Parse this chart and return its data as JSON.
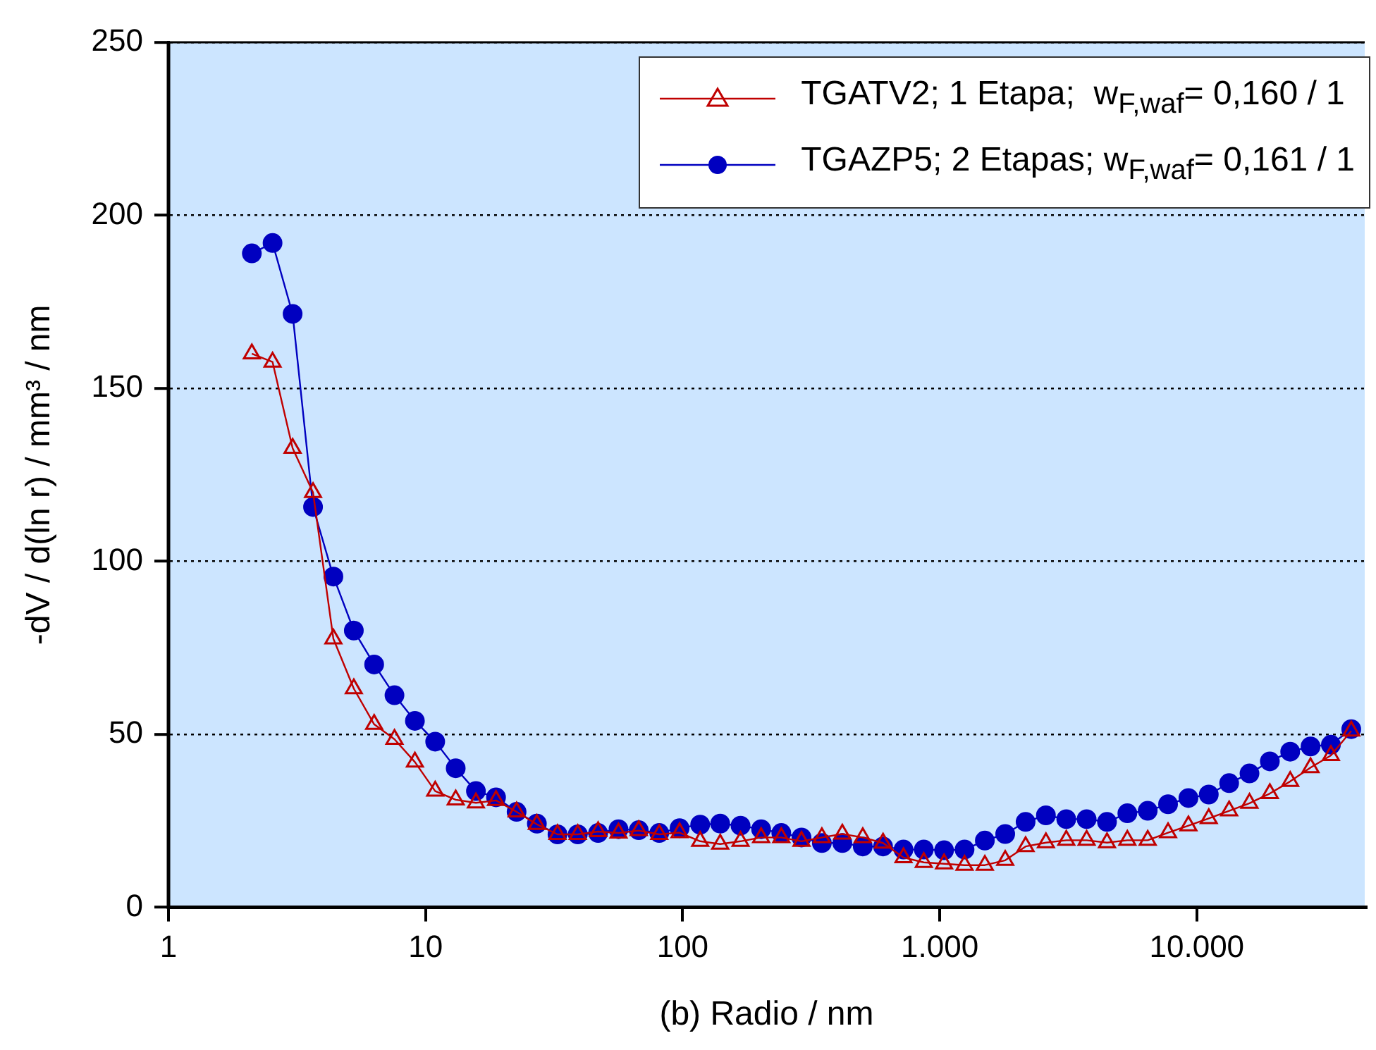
{
  "chart_data": {
    "type": "line",
    "xlabel": "(b) Radio / nm",
    "ylabel": "-dV / d(ln r) / mm³ / nm",
    "log": "x",
    "grid": "y",
    "legend": "top right",
    "line_style": "solid",
    "xlim": [
      1,
      45000
    ],
    "xticks": [
      1,
      10,
      100,
      {
        "value": 1000,
        "label": "1.000"
      },
      {
        "value": 10000,
        "label": "10.000"
      }
    ],
    "ylim": [
      0,
      250
    ],
    "yticks": [
      0,
      50,
      100,
      150,
      200,
      250
    ],
    "x": [
      2.11,
      2.54,
      3.04,
      3.65,
      4.38,
      5.26,
      6.31,
      7.57,
      9.09,
      10.9,
      13.1,
      15.7,
      18.8,
      22.6,
      27.1,
      32.6,
      39.1,
      46.9,
      56.3,
      67.5,
      81.1,
      97.3,
      117,
      140,
      168,
      202,
      242,
      290,
      348,
      418,
      502,
      602,
      723,
      867,
      1040,
      1249,
      1498,
      1798,
      2158,
      2589,
      3107,
      3728,
      4474,
      5369,
      6443,
      7731,
      9278,
      11133,
      13360,
      16032,
      19238,
      23085,
      27701,
      33242,
      39891
    ],
    "series": [
      {
        "name": "TGATV2; 1 Etapa;  w$_{F,waf}$= 0,160 / 1",
        "color": "#c00000",
        "marker": "triangle",
        "values": [
          160,
          157.6,
          132.7,
          119.9,
          77.6,
          63.2,
          52.9,
          48.6,
          42,
          33.6,
          31.1,
          30.2,
          30.9,
          27.6,
          24,
          21.1,
          21.1,
          21.9,
          21.5,
          22.2,
          21.1,
          21.6,
          19.1,
          18.3,
          19.1,
          20.2,
          20.2,
          19.1,
          20.2,
          21.2,
          20.2,
          18.6,
          14.4,
          13,
          12.6,
          12.2,
          12.2,
          13.6,
          17.6,
          18.7,
          19.4,
          19.4,
          18.7,
          19.4,
          19.4,
          21.6,
          23.6,
          25.7,
          27.9,
          30.1,
          32.9,
          36.4,
          40.4,
          43.9,
          51
        ]
      },
      {
        "name": "TGAZP5; 2 Etapas; w$_{F,waf}$= 0,161 / 1",
        "color": "#0000c0",
        "marker": "circle",
        "values": [
          189,
          192,
          171.5,
          115.7,
          95.6,
          80,
          70.2,
          61.3,
          53.9,
          47.9,
          40.2,
          33.6,
          31.8,
          27.6,
          24.2,
          21.1,
          21.1,
          21.5,
          22.6,
          22.3,
          21.5,
          22.9,
          23.9,
          24.2,
          23.6,
          22.6,
          21.5,
          20.2,
          18.6,
          18.6,
          17.6,
          17.6,
          16.7,
          16.7,
          16.5,
          16.7,
          19.3,
          21.2,
          24.7,
          26.6,
          25.5,
          25.5,
          24.7,
          27.2,
          27.9,
          29.8,
          31.6,
          32.6,
          35.9,
          38.7,
          42.2,
          45,
          46.5,
          47,
          51.5
        ]
      }
    ]
  }
}
